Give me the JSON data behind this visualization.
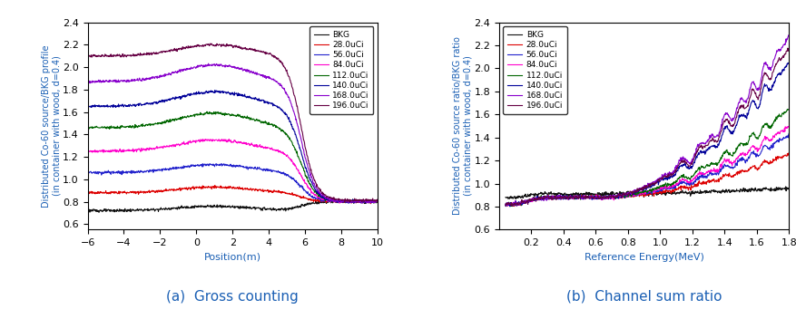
{
  "chart_a": {
    "caption": "(a)  Gross counting",
    "xlabel": "Position(m)",
    "ylabel": "Distributed Co-60 source/BKG profile\n(in container with wood, d=0.4)",
    "xlim": [
      -6,
      10
    ],
    "ylim": [
      0.55,
      2.4
    ],
    "yticks": [
      0.6,
      0.8,
      1.0,
      1.2,
      1.4,
      1.6,
      1.8,
      2.0,
      2.2,
      2.4
    ],
    "xticks": [
      -6,
      -4,
      -2,
      0,
      2,
      4,
      6,
      8,
      10
    ],
    "series": [
      {
        "label": "BKG",
        "color": "#111111",
        "plateau": 0.72,
        "peak_bump": 0.04,
        "drop_to": 0.6,
        "recover": 0.8
      },
      {
        "label": "28.0uCi",
        "color": "#dd0000",
        "plateau": 0.88,
        "peak_bump": 0.05,
        "drop_to": 0.63,
        "recover": 0.8
      },
      {
        "label": "56.0uCi",
        "color": "#2222cc",
        "plateau": 1.06,
        "peak_bump": 0.07,
        "drop_to": 0.68,
        "recover": 0.8
      },
      {
        "label": "84.0uCi",
        "color": "#ff00cc",
        "plateau": 1.25,
        "peak_bump": 0.1,
        "drop_to": 0.72,
        "recover": 0.8
      },
      {
        "label": "112.0uCi",
        "color": "#006600",
        "plateau": 1.46,
        "peak_bump": 0.13,
        "drop_to": 0.75,
        "recover": 0.8
      },
      {
        "label": "140.0uCi",
        "color": "#000099",
        "plateau": 1.65,
        "peak_bump": 0.13,
        "drop_to": 0.77,
        "recover": 0.8
      },
      {
        "label": "168.0uCi",
        "color": "#8800cc",
        "plateau": 1.87,
        "peak_bump": 0.15,
        "drop_to": 0.78,
        "recover": 0.8
      },
      {
        "label": "196.0uCi",
        "color": "#660044",
        "plateau": 2.1,
        "peak_bump": 0.1,
        "drop_to": 0.79,
        "recover": 0.81
      }
    ]
  },
  "chart_b": {
    "caption": "(b)  Channel sum ratio",
    "xlabel": "Reference Energy(MeV)",
    "ylabel": "Distributed Co-60 source ratio/BKG ratio\n(in container with wood, d=0.4)",
    "xlim": [
      0.0,
      1.8
    ],
    "ylim": [
      0.6,
      2.4
    ],
    "yticks": [
      0.6,
      0.8,
      1.0,
      1.2,
      1.4,
      1.6,
      1.8,
      2.0,
      2.2,
      2.4
    ],
    "xticks": [
      0.2,
      0.4,
      0.6,
      0.8,
      1.0,
      1.2,
      1.4,
      1.6,
      1.8
    ],
    "series": [
      {
        "label": "BKG",
        "color": "#111111",
        "init": 0.88,
        "flat": 0.91,
        "end_val": 0.96
      },
      {
        "label": "28.0uCi",
        "color": "#dd0000",
        "init": 0.82,
        "flat": 0.88,
        "end_val": 1.26
      },
      {
        "label": "56.0uCi",
        "color": "#2222cc",
        "init": 0.82,
        "flat": 0.88,
        "end_val": 1.42
      },
      {
        "label": "84.0uCi",
        "color": "#ff00cc",
        "init": 0.82,
        "flat": 0.88,
        "end_val": 1.5
      },
      {
        "label": "112.0uCi",
        "color": "#006600",
        "init": 0.82,
        "flat": 0.88,
        "end_val": 1.65
      },
      {
        "label": "140.0uCi",
        "color": "#000099",
        "init": 0.82,
        "flat": 0.88,
        "end_val": 2.05
      },
      {
        "label": "168.0uCi",
        "color": "#8800cc",
        "init": 0.82,
        "flat": 0.88,
        "end_val": 2.28
      },
      {
        "label": "196.0uCi",
        "color": "#660044",
        "init": 0.82,
        "flat": 0.88,
        "end_val": 2.18
      }
    ]
  },
  "caption_color": "#1a5fb4",
  "caption_fontsize": 11,
  "axis_label_color": "#1a5fb4",
  "axis_label_fontsize": 8,
  "tick_fontsize": 8
}
